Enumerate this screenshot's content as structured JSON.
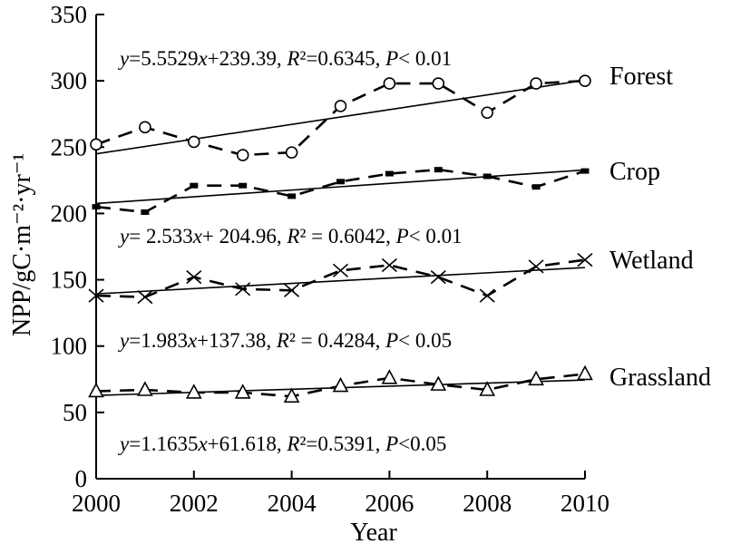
{
  "chart_data": {
    "type": "line",
    "xlabel": "Year",
    "ylabel": "NPP/gC·m⁻²·yr⁻¹",
    "xlim": [
      2000,
      2010
    ],
    "ylim": [
      0,
      350
    ],
    "x_ticks": [
      2000,
      2002,
      2004,
      2006,
      2008,
      2010
    ],
    "y_ticks": [
      0,
      50,
      100,
      150,
      200,
      250,
      300,
      350
    ],
    "grid": false,
    "x": [
      2000,
      2001,
      2002,
      2003,
      2004,
      2005,
      2006,
      2007,
      2008,
      2009,
      2010
    ],
    "series": [
      {
        "name": "Forest",
        "marker": "circle",
        "values": [
          252,
          265,
          254,
          244,
          246,
          281,
          298,
          298,
          276,
          298,
          300
        ],
        "trend": {
          "slope": 5.5529,
          "intercept": 239.39
        },
        "equation": {
          "y": "y",
          "body": "=5.5529",
          "x": "x",
          "rest": "+239.39,  ",
          "r2": "R",
          "r2_val": "²=0.6345, ",
          "p": "P",
          "p_val": "< 0.01"
        }
      },
      {
        "name": "Crop",
        "marker": "square",
        "values": [
          205,
          201,
          221,
          221,
          213,
          224,
          230,
          233,
          228,
          220,
          232
        ],
        "trend": {
          "slope": 2.533,
          "intercept": 204.96
        },
        "equation": {
          "y": "y",
          "body": "= 2.533",
          "x": "x",
          "rest": "+ 204.96, ",
          "r2": "R",
          "r2_val": "² = 0.6042, ",
          "p": "P",
          "p_val": "< 0.01"
        }
      },
      {
        "name": "Wetland",
        "marker": "cross",
        "values": [
          138,
          137,
          152,
          143,
          142,
          157,
          161,
          152,
          138,
          160,
          165
        ],
        "trend": {
          "slope": 1.983,
          "intercept": 137.38
        },
        "equation": {
          "y": "y",
          "body": "=1.983",
          "x": "x",
          "rest": "+137.38, ",
          "r2": "R",
          "r2_val": "² = 0.4284, ",
          "p": "P",
          "p_val": "< 0.05"
        }
      },
      {
        "name": "Grassland",
        "marker": "triangle",
        "values": [
          66,
          67,
          65,
          65,
          62,
          70,
          76,
          71,
          67,
          75,
          79
        ],
        "trend": {
          "slope": 1.1635,
          "intercept": 61.618
        },
        "equation": {
          "y": "y",
          "body": "=1.1635",
          "x": "x",
          "rest": "+61.618, ",
          "r2": "R",
          "r2_val": "²=0.5391, ",
          "p": "P",
          "p_val": "<0.05"
        }
      }
    ]
  }
}
